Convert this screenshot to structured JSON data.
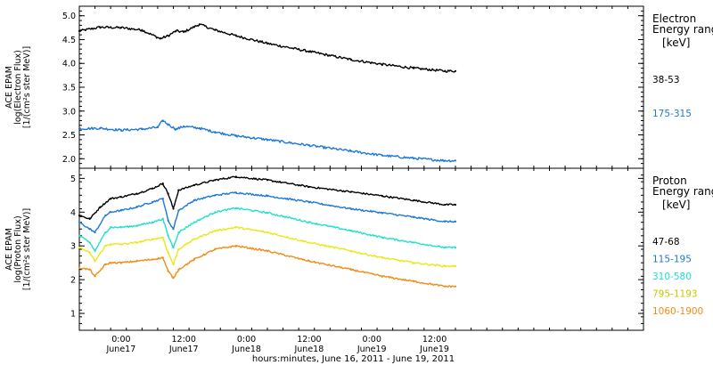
{
  "xaxis": {
    "label": "hours:minutes, June 16, 2011 - June 19, 2011",
    "range_hours": [
      -8,
      100
    ],
    "ticks": [
      {
        "hour": 0,
        "time": "0:00",
        "day": "June17"
      },
      {
        "hour": 12,
        "time": "12:00",
        "day": "June17"
      },
      {
        "hour": 24,
        "time": "0:00",
        "day": "June18"
      },
      {
        "hour": 36,
        "time": "12:00",
        "day": "June18"
      },
      {
        "hour": 48,
        "time": "0:00",
        "day": "June19"
      },
      {
        "hour": 60,
        "time": "12:00",
        "day": "June19"
      }
    ]
  },
  "chart_data": [
    {
      "type": "line",
      "panel": "electron",
      "ylabel_lines": [
        "ACE EPAM",
        "log(Electron Flux)",
        "[1/(cm²s ster MeV)]"
      ],
      "legend_title_lines": [
        "Electron",
        "Energy range"
      ],
      "legend_unit": "[keV]",
      "ylim": [
        1.8,
        5.2
      ],
      "yticks": [
        "2.0",
        "2.5",
        "3.0",
        "3.5",
        "4.0",
        "4.5",
        "5.0"
      ],
      "series": [
        {
          "name": "38-53",
          "color": "#000000",
          "x": [
            -8,
            -4,
            0,
            4,
            7.5,
            9,
            10.5,
            12,
            15,
            18,
            22,
            28,
            36,
            44,
            50,
            56,
            62,
            64
          ],
          "y": [
            4.68,
            4.76,
            4.75,
            4.7,
            4.52,
            4.58,
            4.68,
            4.66,
            4.82,
            4.7,
            4.58,
            4.42,
            4.25,
            4.08,
            3.98,
            3.9,
            3.84,
            3.84
          ]
        },
        {
          "name": "175-315",
          "color": "#1e78d8",
          "x": [
            -8,
            -4,
            0,
            4,
            7,
            8,
            9,
            10.5,
            12,
            15,
            18,
            22,
            28,
            36,
            44,
            50,
            56,
            62,
            64
          ],
          "y": [
            2.63,
            2.64,
            2.6,
            2.62,
            2.66,
            2.8,
            2.72,
            2.62,
            2.68,
            2.64,
            2.56,
            2.48,
            2.4,
            2.28,
            2.16,
            2.07,
            2.01,
            1.96,
            1.96
          ]
        }
      ]
    },
    {
      "type": "line",
      "panel": "proton",
      "ylabel_lines": [
        "ACE EPAM",
        "log(Proton Flux)",
        "[1/(cm²s ster MeV)]"
      ],
      "legend_title_lines": [
        "Proton",
        "Energy range"
      ],
      "legend_unit": "[keV]",
      "ylim": [
        0.5,
        5.3
      ],
      "yticks": [
        "1",
        "2",
        "3",
        "4",
        "5"
      ],
      "series": [
        {
          "name": "47-68",
          "color": "#000000",
          "x": [
            -8,
            -6,
            -4,
            -2,
            0,
            3,
            6,
            8,
            9,
            10,
            11,
            14,
            18,
            22,
            28,
            36,
            44,
            50,
            56,
            62,
            64
          ],
          "y": [
            3.9,
            3.8,
            4.15,
            4.4,
            4.45,
            4.55,
            4.7,
            4.85,
            4.55,
            4.1,
            4.65,
            4.8,
            4.95,
            5.05,
            4.95,
            4.75,
            4.6,
            4.48,
            4.35,
            4.22,
            4.22
          ]
        },
        {
          "name": "115-195",
          "color": "#1e78d8",
          "x": [
            -8,
            -6,
            -5,
            -3,
            -2,
            0,
            3,
            6,
            8,
            9,
            10,
            11,
            14,
            18,
            22,
            28,
            36,
            44,
            50,
            56,
            62,
            64
          ],
          "y": [
            3.7,
            3.5,
            3.4,
            3.9,
            4.0,
            4.05,
            4.15,
            4.3,
            4.4,
            3.75,
            3.5,
            4.05,
            4.35,
            4.5,
            4.58,
            4.48,
            4.3,
            4.1,
            3.98,
            3.85,
            3.72,
            3.72
          ]
        },
        {
          "name": "310-580",
          "color": "#20e0cc",
          "x": [
            -8,
            -6,
            -5,
            -3,
            -2,
            0,
            3,
            6,
            8,
            9,
            10,
            11,
            14,
            18,
            22,
            28,
            36,
            44,
            50,
            56,
            62,
            64
          ],
          "y": [
            3.3,
            3.1,
            2.85,
            3.4,
            3.55,
            3.55,
            3.6,
            3.7,
            3.8,
            3.3,
            2.95,
            3.4,
            3.7,
            4.0,
            4.12,
            3.98,
            3.7,
            3.45,
            3.25,
            3.1,
            2.95,
            2.95
          ]
        },
        {
          "name": "795-1193",
          "color": "#e8e818",
          "x": [
            -8,
            -6,
            -5,
            -3,
            -2,
            0,
            3,
            6,
            8,
            9,
            10,
            11,
            14,
            18,
            22,
            28,
            36,
            44,
            50,
            56,
            62,
            64
          ],
          "y": [
            2.95,
            2.8,
            2.55,
            3.0,
            3.05,
            3.05,
            3.1,
            3.2,
            3.25,
            2.8,
            2.45,
            2.9,
            3.2,
            3.45,
            3.55,
            3.4,
            3.1,
            2.85,
            2.65,
            2.5,
            2.4,
            2.4
          ]
        },
        {
          "name": "1060-1900",
          "color": "#f08c14",
          "x": [
            -8,
            -6,
            -5,
            -3,
            -2,
            0,
            3,
            6,
            8,
            9,
            10,
            11,
            14,
            18,
            22,
            28,
            36,
            44,
            50,
            56,
            62,
            64
          ],
          "y": [
            2.35,
            2.3,
            2.1,
            2.45,
            2.5,
            2.5,
            2.55,
            2.6,
            2.65,
            2.25,
            2.05,
            2.3,
            2.6,
            2.9,
            3.0,
            2.85,
            2.55,
            2.3,
            2.1,
            1.95,
            1.8,
            1.8
          ]
        }
      ]
    }
  ]
}
